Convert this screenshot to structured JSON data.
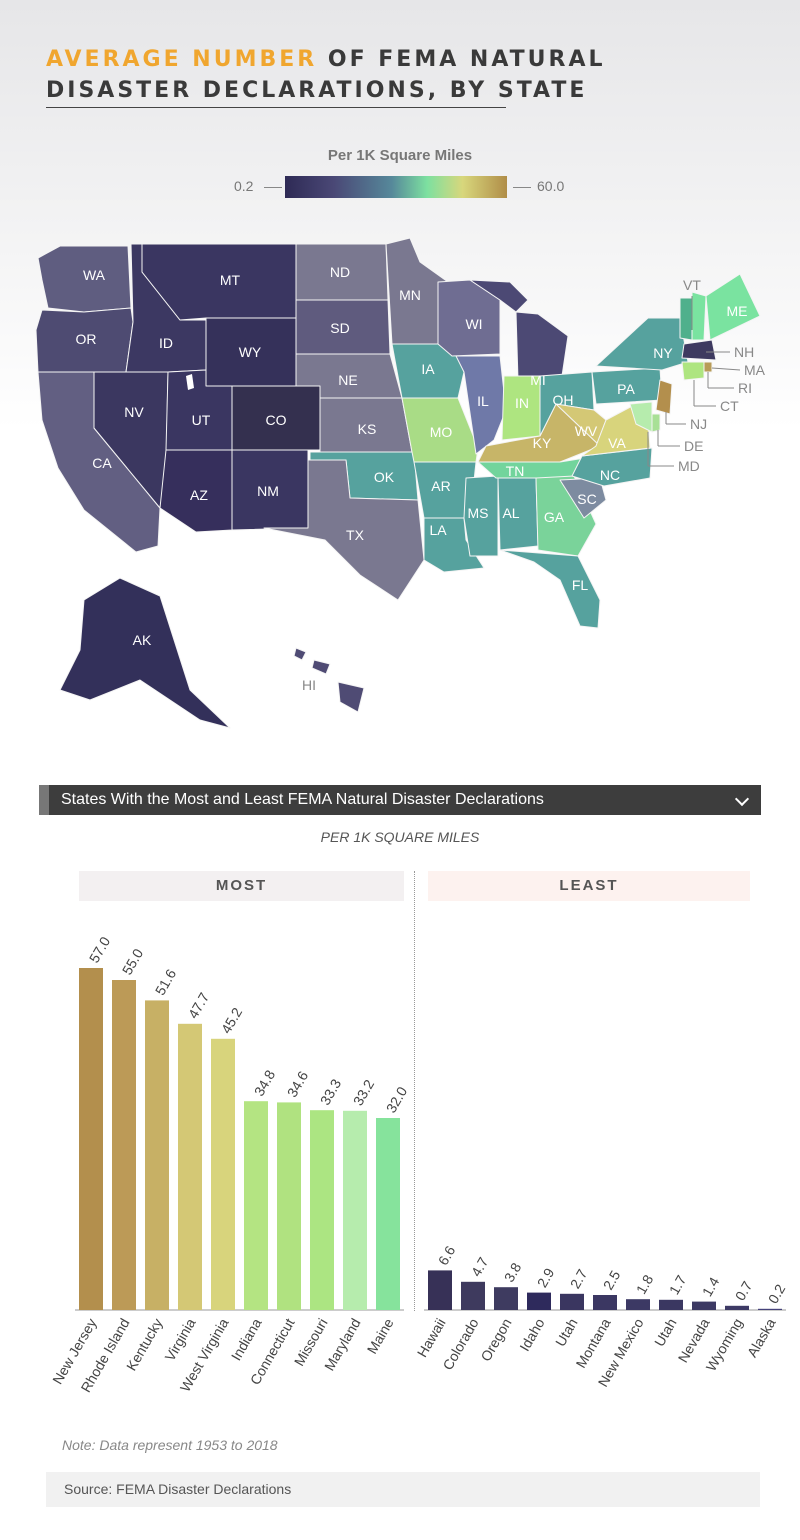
{
  "title": {
    "highlight": "AVERAGE NUMBER",
    "rest": " OF FEMA NATURAL",
    "line2": "DISASTER DECLARATIONS, BY STATE"
  },
  "legend": {
    "title": "Per 1K Square Miles",
    "min": "0.2",
    "max": "60.0"
  },
  "colors": {
    "accent": "#f0a62f",
    "low": "#2e2a55",
    "mid": "#56889a",
    "green": "#7de0a0",
    "yellow": "#d8d77c",
    "high": "#b08d48"
  },
  "map_labels": {
    "WA": "WA",
    "OR": "OR",
    "CA": "CA",
    "ID": "ID",
    "NV": "NV",
    "MT": "MT",
    "WY": "WY",
    "UT": "UT",
    "AZ": "AZ",
    "CO": "CO",
    "NM": "NM",
    "ND": "ND",
    "SD": "SD",
    "NE": "NE",
    "KS": "KS",
    "OK": "OK",
    "TX": "TX",
    "MN": "MN",
    "IA": "IA",
    "MO": "MO",
    "AR": "AR",
    "LA": "LA",
    "WI": "WI",
    "IL": "IL",
    "MS": "MS",
    "MI": "MI",
    "IN": "IN",
    "KY": "KY",
    "TN": "TN",
    "AL": "AL",
    "OH": "OH",
    "GA": "GA",
    "FL": "FL",
    "SC": "SC",
    "NC": "NC",
    "WV": "WV",
    "VA": "VA",
    "PA": "PA",
    "NY": "NY",
    "VT": "VT",
    "NH": "NH",
    "ME": "ME",
    "MA": "MA",
    "RI": "RI",
    "CT": "CT",
    "NJ": "NJ",
    "DE": "DE",
    "MD": "MD",
    "AK": "AK",
    "HI": "HI"
  },
  "panel": {
    "title": "States With the Most and Least FEMA Natural Disaster Declarations",
    "subtitle": "PER 1K SQUARE MILES"
  },
  "chart_data": [
    {
      "type": "bar",
      "title": "MOST",
      "ylim": [
        0,
        60
      ],
      "categories": [
        "New Jersey",
        "Rhode Island",
        "Kentucky",
        "Virginia",
        "West Virginia",
        "Indiana",
        "Connecticut",
        "Missouri",
        "Maryland",
        "Maine"
      ],
      "values": [
        57.0,
        55.0,
        51.6,
        47.7,
        45.2,
        34.8,
        34.6,
        33.3,
        33.2,
        32.0
      ],
      "value_labels": [
        "57.0",
        "55.0",
        "51.6",
        "47.7",
        "45.2",
        "34.8",
        "34.6",
        "33.3",
        "33.2",
        "32.0"
      ],
      "colors": [
        "#b38f4d",
        "#bc9a57",
        "#c7b065",
        "#d4c875",
        "#d8d47c",
        "#b4e482",
        "#b0e280",
        "#ace582",
        "#b6ecad",
        "#86e39c"
      ]
    },
    {
      "type": "bar",
      "title": "LEAST",
      "ylim": [
        0,
        60
      ],
      "categories": [
        "Hawaii",
        "Colorado",
        "Oregon",
        "Idaho",
        "Utah",
        "Montana",
        "New Mexico",
        "Utah",
        "Nevada",
        "Wyoming",
        "Alaska"
      ],
      "values": [
        6.6,
        4.7,
        3.8,
        2.9,
        2.7,
        2.5,
        1.8,
        1.7,
        1.4,
        0.7,
        0.2
      ],
      "value_labels": [
        "6.6",
        "4.7",
        "3.8",
        "2.9",
        "2.7",
        "2.5",
        "1.8",
        "1.7",
        "1.4",
        "0.7",
        "0.2"
      ],
      "colors": [
        "#373157",
        "#3e3a5e",
        "#3e3b60",
        "#2e2a5c",
        "#3a3660",
        "#3b3762",
        "#3c3964",
        "#3a3761",
        "#3c3963",
        "#3d3a65",
        "#45427a"
      ]
    }
  ],
  "note": "Note: Data represent 1953 to 2018",
  "source": "Source: FEMA Disaster Declarations"
}
